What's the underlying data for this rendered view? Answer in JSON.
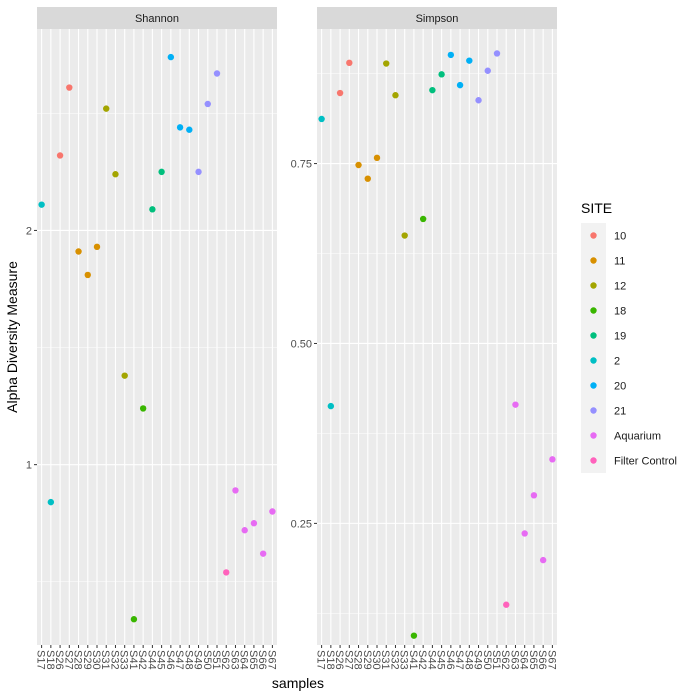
{
  "chart_data": {
    "type": "scatter",
    "x_label": "samples",
    "y_label": "Alpha Diversity Measure",
    "samples": [
      "S17",
      "S18",
      "S26",
      "S27",
      "S28",
      "S29",
      "S30",
      "S31",
      "S32",
      "S33",
      "S41",
      "S42",
      "S44",
      "S45",
      "S46",
      "S47",
      "S48",
      "S49",
      "S50",
      "S51",
      "S62",
      "S63",
      "S64",
      "S65",
      "S66",
      "S67"
    ],
    "legend": {
      "title": "SITE",
      "position": "right",
      "entries": [
        {
          "label": "10",
          "color": "#F8766D"
        },
        {
          "label": "11",
          "color": "#D89000"
        },
        {
          "label": "12",
          "color": "#A3A500"
        },
        {
          "label": "18",
          "color": "#39B600"
        },
        {
          "label": "19",
          "color": "#00BF7D"
        },
        {
          "label": "2",
          "color": "#00BFC4"
        },
        {
          "label": "20",
          "color": "#00B0F6"
        },
        {
          "label": "21",
          "color": "#9590FF"
        },
        {
          "label": "Aquarium",
          "color": "#E76BF3"
        },
        {
          "label": "Filter Control",
          "color": "#FF62BC"
        }
      ]
    },
    "panels": [
      {
        "title": "Shannon",
        "ylim": [
          0.23,
          2.86
        ],
        "y_ticks": [
          {
            "value": 1,
            "label": "1"
          },
          {
            "value": 2,
            "label": "2"
          }
        ],
        "points": [
          {
            "sample": "S17",
            "site": "2",
            "value": 2.11
          },
          {
            "sample": "S18",
            "site": "2",
            "value": 0.84
          },
          {
            "sample": "S26",
            "site": "10",
            "value": 2.32
          },
          {
            "sample": "S27",
            "site": "10",
            "value": 2.61
          },
          {
            "sample": "S28",
            "site": "11",
            "value": 1.91
          },
          {
            "sample": "S29",
            "site": "11",
            "value": 1.81
          },
          {
            "sample": "S30",
            "site": "11",
            "value": 1.93
          },
          {
            "sample": "S31",
            "site": "12",
            "value": 2.52
          },
          {
            "sample": "S32",
            "site": "12",
            "value": 2.24
          },
          {
            "sample": "S33",
            "site": "12",
            "value": 1.38
          },
          {
            "sample": "S41",
            "site": "18",
            "value": 0.34
          },
          {
            "sample": "S42",
            "site": "18",
            "value": 1.24
          },
          {
            "sample": "S44",
            "site": "19",
            "value": 2.09
          },
          {
            "sample": "S45",
            "site": "19",
            "value": 2.25
          },
          {
            "sample": "S46",
            "site": "20",
            "value": 2.74
          },
          {
            "sample": "S47",
            "site": "20",
            "value": 2.44
          },
          {
            "sample": "S48",
            "site": "20",
            "value": 2.43
          },
          {
            "sample": "S49",
            "site": "21",
            "value": 2.25
          },
          {
            "sample": "S50",
            "site": "21",
            "value": 2.54
          },
          {
            "sample": "S51",
            "site": "21",
            "value": 2.67
          },
          {
            "sample": "S62",
            "site": "Filter Control",
            "value": 0.54
          },
          {
            "sample": "S63",
            "site": "Aquarium",
            "value": 0.89
          },
          {
            "sample": "S64",
            "site": "Aquarium",
            "value": 0.72
          },
          {
            "sample": "S65",
            "site": "Aquarium",
            "value": 0.75
          },
          {
            "sample": "S66",
            "site": "Aquarium",
            "value": 0.62
          },
          {
            "sample": "S67",
            "site": "Aquarium",
            "value": 0.8
          }
        ]
      },
      {
        "title": "Simpson",
        "ylim": [
          0.081,
          0.937
        ],
        "y_ticks": [
          {
            "value": 0.25,
            "label": "0.25"
          },
          {
            "value": 0.5,
            "label": "0.50"
          },
          {
            "value": 0.75,
            "label": "0.75"
          }
        ],
        "points": [
          {
            "sample": "S17",
            "site": "2",
            "value": 0.812
          },
          {
            "sample": "S18",
            "site": "2",
            "value": 0.413
          },
          {
            "sample": "S26",
            "site": "10",
            "value": 0.848
          },
          {
            "sample": "S27",
            "site": "10",
            "value": 0.89
          },
          {
            "sample": "S28",
            "site": "11",
            "value": 0.748
          },
          {
            "sample": "S29",
            "site": "11",
            "value": 0.729
          },
          {
            "sample": "S30",
            "site": "11",
            "value": 0.758
          },
          {
            "sample": "S31",
            "site": "12",
            "value": 0.889
          },
          {
            "sample": "S32",
            "site": "12",
            "value": 0.845
          },
          {
            "sample": "S33",
            "site": "12",
            "value": 0.65
          },
          {
            "sample": "S41",
            "site": "18",
            "value": 0.094
          },
          {
            "sample": "S42",
            "site": "18",
            "value": 0.673
          },
          {
            "sample": "S44",
            "site": "19",
            "value": 0.852
          },
          {
            "sample": "S45",
            "site": "19",
            "value": 0.874
          },
          {
            "sample": "S46",
            "site": "20",
            "value": 0.901
          },
          {
            "sample": "S47",
            "site": "20",
            "value": 0.859
          },
          {
            "sample": "S48",
            "site": "20",
            "value": 0.893
          },
          {
            "sample": "S49",
            "site": "21",
            "value": 0.838
          },
          {
            "sample": "S50",
            "site": "21",
            "value": 0.879
          },
          {
            "sample": "S51",
            "site": "21",
            "value": 0.903
          },
          {
            "sample": "S62",
            "site": "Filter Control",
            "value": 0.137
          },
          {
            "sample": "S63",
            "site": "Aquarium",
            "value": 0.415
          },
          {
            "sample": "S64",
            "site": "Aquarium",
            "value": 0.236
          },
          {
            "sample": "S65",
            "site": "Aquarium",
            "value": 0.289
          },
          {
            "sample": "S66",
            "site": "Aquarium",
            "value": 0.199
          },
          {
            "sample": "S67",
            "site": "Aquarium",
            "value": 0.339
          }
        ]
      }
    ]
  }
}
